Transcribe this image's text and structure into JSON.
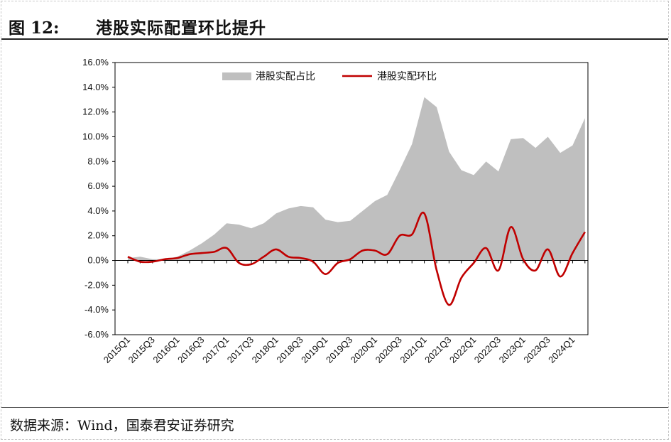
{
  "header": {
    "figure_number": "图 12:",
    "figure_title": "港股实际配置环比提升"
  },
  "footer": {
    "source": "数据来源：Wind，国泰君安证券研究"
  },
  "colors": {
    "area": "#bfbfbf",
    "line": "#c00000",
    "axis": "#000000"
  },
  "chart_data": {
    "type": "area",
    "title": "港股实际配置环比提升",
    "xlabel": "",
    "ylabel": "",
    "ylim": [
      -6.0,
      16.0
    ],
    "yticks": [
      "16.0%",
      "14.0%",
      "12.0%",
      "10.0%",
      "8.0%",
      "6.0%",
      "4.0%",
      "2.0%",
      "0.0%",
      "-2.0%",
      "-4.0%",
      "-6.0%"
    ],
    "ytick_values": [
      16,
      14,
      12,
      10,
      8,
      6,
      4,
      2,
      0,
      -2,
      -4,
      -6
    ],
    "categories": [
      "2015Q1",
      "2015Q2",
      "2015Q3",
      "2015Q4",
      "2016Q1",
      "2016Q2",
      "2016Q3",
      "2016Q4",
      "2017Q1",
      "2017Q2",
      "2017Q3",
      "2017Q4",
      "2018Q1",
      "2018Q2",
      "2018Q3",
      "2018Q4",
      "2019Q1",
      "2019Q2",
      "2019Q3",
      "2019Q4",
      "2020Q1",
      "2020Q2",
      "2020Q3",
      "2020Q4",
      "2021Q1",
      "2021Q2",
      "2021Q3",
      "2021Q4",
      "2022Q1",
      "2022Q2",
      "2022Q3",
      "2022Q4",
      "2023Q1",
      "2023Q2",
      "2023Q3",
      "2023Q4",
      "2024Q1",
      "2024Q2"
    ],
    "tick_labels": [
      "2015Q1",
      "2015Q3",
      "2016Q1",
      "2016Q3",
      "2017Q1",
      "2017Q3",
      "2018Q1",
      "2018Q3",
      "2019Q1",
      "2019Q3",
      "2020Q1",
      "2020Q3",
      "2021Q1",
      "2021Q3",
      "2022Q1",
      "2022Q3",
      "2023Q1",
      "2023Q3",
      "2024Q1"
    ],
    "legend_position": "top-center",
    "series": [
      {
        "name": "港股实配占比",
        "kind": "area",
        "values": [
          0.2,
          0.3,
          0.1,
          0.1,
          0.3,
          0.8,
          1.4,
          2.1,
          3.0,
          2.9,
          2.6,
          3.0,
          3.8,
          4.2,
          4.4,
          4.3,
          3.3,
          3.1,
          3.2,
          4.0,
          4.8,
          5.3,
          7.3,
          9.4,
          13.2,
          12.4,
          8.8,
          7.3,
          6.9,
          8.0,
          7.2,
          9.8,
          9.9,
          9.1,
          10.0,
          8.7,
          9.3,
          11.5
        ]
      },
      {
        "name": "港股实配环比",
        "kind": "line",
        "values": [
          0.3,
          -0.1,
          -0.1,
          0.1,
          0.2,
          0.5,
          0.6,
          0.7,
          1.0,
          -0.2,
          -0.3,
          0.3,
          0.9,
          0.3,
          0.2,
          -0.1,
          -1.1,
          -0.2,
          0.1,
          0.8,
          0.8,
          0.5,
          2.0,
          2.1,
          3.8,
          -0.8,
          -3.6,
          -1.4,
          -0.2,
          1.0,
          -0.8,
          2.7,
          0.1,
          -0.8,
          0.9,
          -1.3,
          0.6,
          2.3
        ]
      }
    ]
  }
}
